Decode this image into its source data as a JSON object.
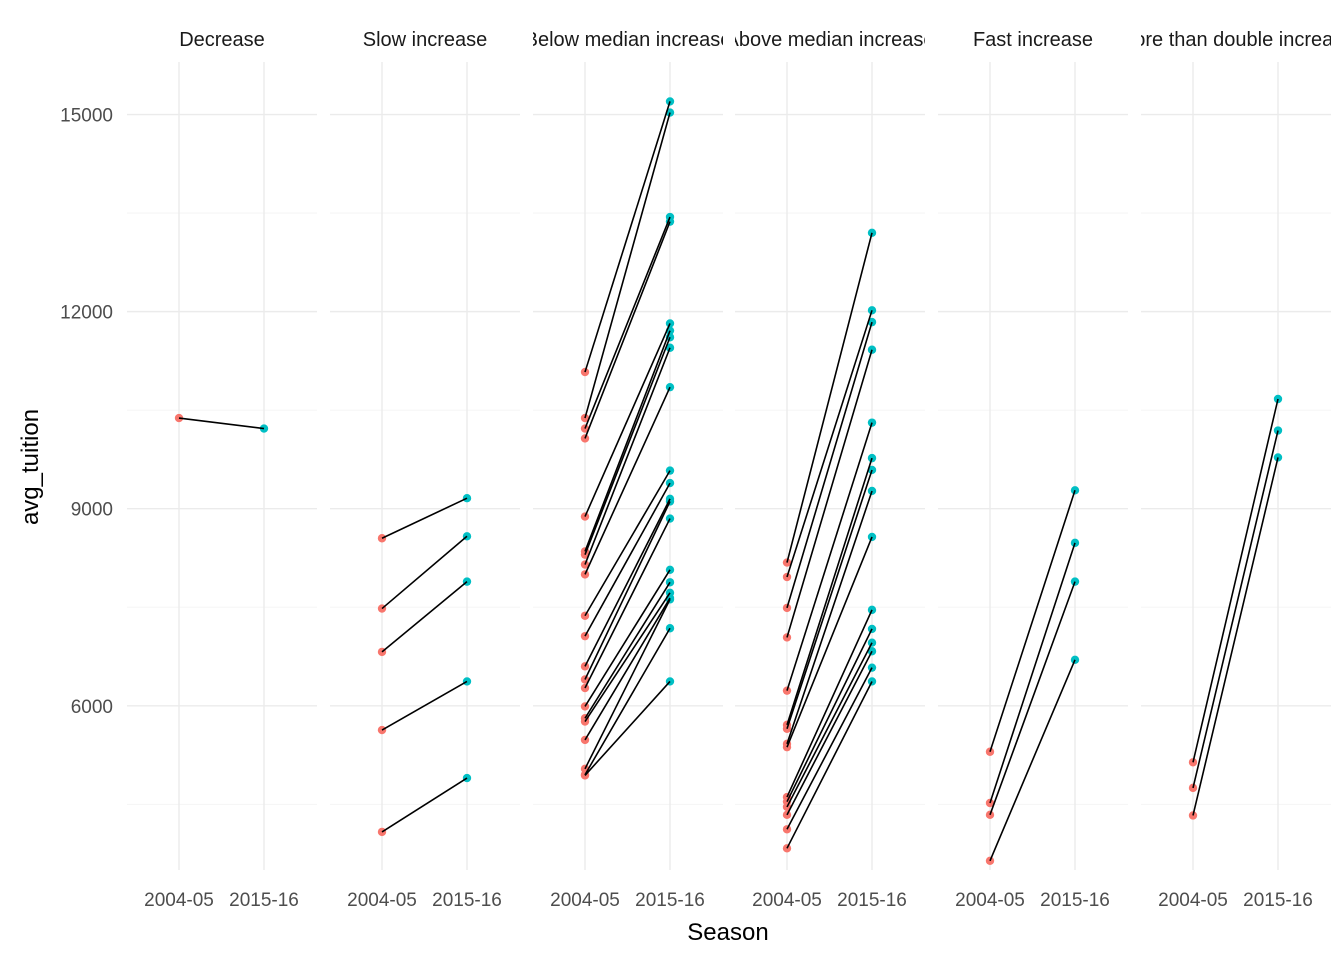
{
  "chart_data": {
    "type": "line",
    "xlabel": "Season",
    "ylabel": "avg_tuition",
    "ylim": [
      3500,
      15800
    ],
    "y_ticks": [
      6000,
      9000,
      12000,
      15000
    ],
    "x_categories": [
      "2004-05",
      "2015-16"
    ],
    "colors": {
      "2004-05": "#F8766D",
      "2015-16": "#00BFC4",
      "line": "#000000"
    },
    "facets": [
      {
        "label": "Decrease",
        "pairs": [
          [
            10380,
            10220
          ]
        ]
      },
      {
        "label": "Slow increase",
        "pairs": [
          [
            8550,
            9160
          ],
          [
            7480,
            8580
          ],
          [
            6820,
            7890
          ],
          [
            5630,
            6370
          ],
          [
            4080,
            4900
          ]
        ]
      },
      {
        "label": "Below median increase",
        "pairs": [
          [
            11080,
            15200
          ],
          [
            10380,
            15030
          ],
          [
            10220,
            13440
          ],
          [
            10070,
            13370
          ],
          [
            8880,
            11820
          ],
          [
            8350,
            11710
          ],
          [
            8300,
            11610
          ],
          [
            8150,
            11450
          ],
          [
            8000,
            10850
          ],
          [
            7370,
            9580
          ],
          [
            7060,
            9390
          ],
          [
            6600,
            9150
          ],
          [
            6400,
            9110
          ],
          [
            6270,
            8850
          ],
          [
            5990,
            8070
          ],
          [
            5810,
            7880
          ],
          [
            5760,
            7720
          ],
          [
            5480,
            7640
          ],
          [
            5040,
            7620
          ],
          [
            4950,
            7180
          ],
          [
            4940,
            6370
          ]
        ]
      },
      {
        "label": "Above median increase",
        "pairs": [
          [
            8180,
            13200
          ],
          [
            7960,
            12020
          ],
          [
            7490,
            11840
          ],
          [
            7040,
            11420
          ],
          [
            6230,
            10310
          ],
          [
            5710,
            9770
          ],
          [
            5650,
            9590
          ],
          [
            5420,
            9270
          ],
          [
            5370,
            8570
          ],
          [
            4610,
            7460
          ],
          [
            4540,
            7170
          ],
          [
            4460,
            6960
          ],
          [
            4340,
            6830
          ],
          [
            4120,
            6580
          ],
          [
            3830,
            6370
          ]
        ]
      },
      {
        "label": "Fast increase",
        "pairs": [
          [
            5300,
            9280
          ],
          [
            4520,
            8480
          ],
          [
            4340,
            7890
          ],
          [
            3640,
            6700
          ]
        ]
      },
      {
        "label": "More than double increase",
        "pairs": [
          [
            5140,
            10670
          ],
          [
            4750,
            10190
          ],
          [
            4330,
            9780
          ]
        ]
      }
    ]
  }
}
